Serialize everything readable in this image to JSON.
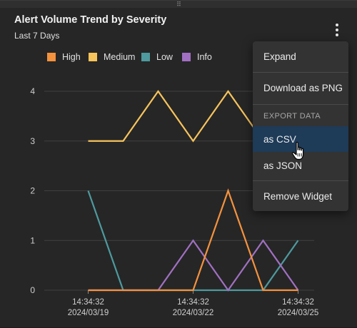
{
  "widget": {
    "drag_handle": "⠿",
    "title": "Alert Volume Trend by Severity",
    "subtitle": "Last 7 Days",
    "menu_icon": "kebab-vertical-icon"
  },
  "menu": {
    "expand": "Expand",
    "download_png": "Download as PNG",
    "export_header": "EXPORT DATA",
    "as_csv": "as CSV",
    "as_json": "as JSON",
    "remove_widget": "Remove Widget",
    "highlighted_item": "as CSV"
  },
  "chart_data": {
    "type": "line",
    "x": [
      "2024/03/19 14:34:32",
      "2024/03/20 14:34:32",
      "2024/03/21 14:34:32",
      "2024/03/22 14:34:32",
      "2024/03/23 14:34:32",
      "2024/03/24 14:34:32",
      "2024/03/25 14:34:32"
    ],
    "x_ticks": [
      {
        "index": 0,
        "time": "14:34:32",
        "date": "2024/03/19"
      },
      {
        "index": 3,
        "time": "14:34:32",
        "date": "2024/03/22"
      },
      {
        "index": 6,
        "time": "14:34:32",
        "date": "2024/03/25"
      }
    ],
    "y_ticks": [
      0,
      1,
      2,
      3,
      4
    ],
    "ylim": [
      0,
      4
    ],
    "grid": true,
    "legend_position": "top-left",
    "series": [
      {
        "name": "High",
        "color": "#f5923e",
        "values": [
          0,
          0,
          0,
          0,
          2,
          0,
          0
        ]
      },
      {
        "name": "Medium",
        "color": "#f7c45c",
        "values": [
          3,
          3,
          4,
          3,
          4,
          3,
          null
        ]
      },
      {
        "name": "Low",
        "color": "#4e9a9e",
        "values": [
          2,
          0,
          0,
          0,
          0,
          0,
          1
        ]
      },
      {
        "name": "Info",
        "color": "#a170c2",
        "values": [
          0,
          0,
          0,
          1,
          0,
          1,
          0
        ]
      }
    ]
  }
}
